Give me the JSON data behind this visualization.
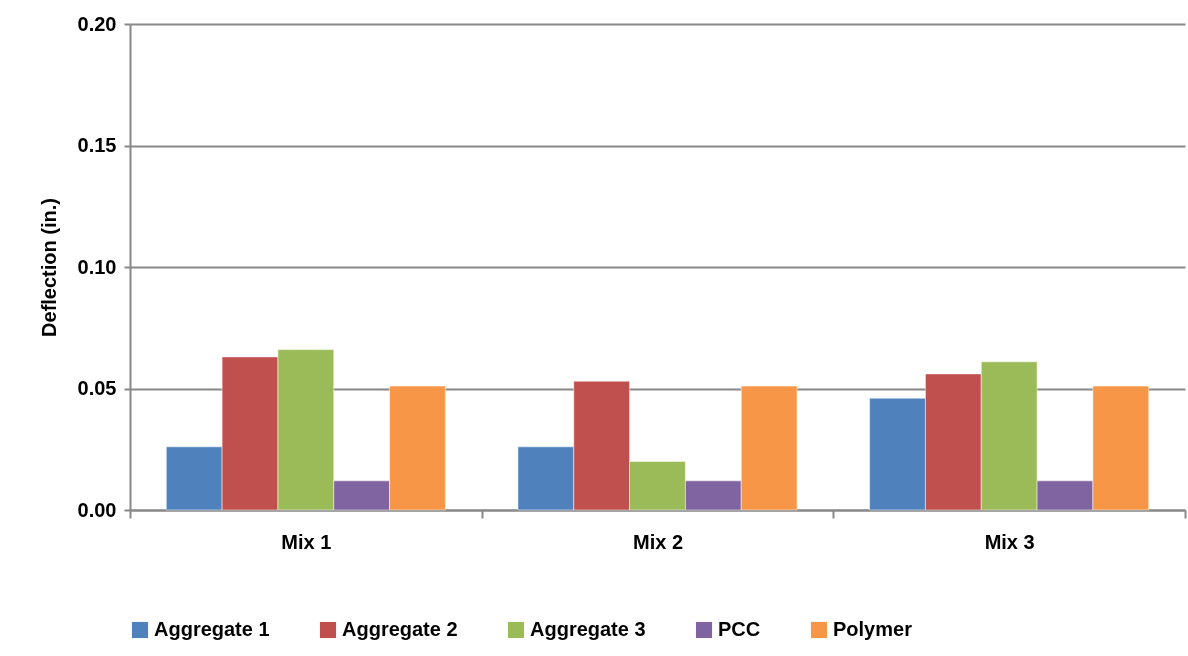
{
  "chart_data": {
    "type": "bar",
    "ylabel": "Deflection (in.)",
    "categories": [
      "Mix 1",
      "Mix 2",
      "Mix 3"
    ],
    "series": [
      {
        "name": "Aggregate 1",
        "color": "#4f81bd",
        "values": [
          0.026,
          0.026,
          0.046
        ]
      },
      {
        "name": "Aggregate 2",
        "color": "#c0504d",
        "values": [
          0.063,
          0.053,
          0.056
        ]
      },
      {
        "name": "Aggregate 3",
        "color": "#9bbb59",
        "values": [
          0.066,
          0.02,
          0.061
        ]
      },
      {
        "name": "PCC",
        "color": "#8064a2",
        "values": [
          0.012,
          0.012,
          0.012
        ]
      },
      {
        "name": "Polymer",
        "color": "#f79646",
        "values": [
          0.051,
          0.051,
          0.051
        ]
      }
    ],
    "ylim": [
      0,
      0.2
    ],
    "yticks": [
      {
        "value": 0,
        "label": "0.00"
      },
      {
        "value": 0.05,
        "label": "0.05"
      },
      {
        "value": 0.1,
        "label": "0.10"
      },
      {
        "value": 0.15,
        "label": "0.15"
      },
      {
        "value": 0.2,
        "label": "0.20"
      }
    ],
    "grid": "y",
    "legend": "bottom"
  }
}
